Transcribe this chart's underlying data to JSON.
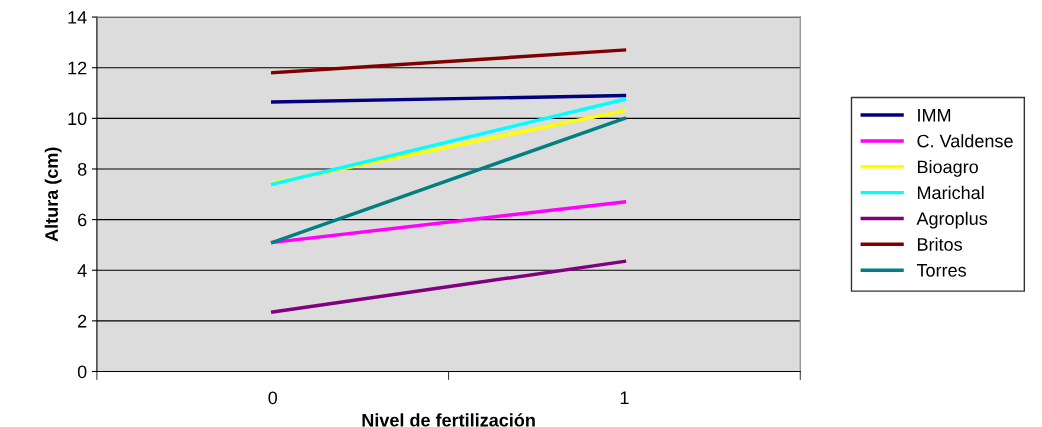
{
  "chart_data": {
    "type": "line",
    "xlabel": "Nivel de fertilización",
    "ylabel": "Altura (cm)",
    "categories": [
      "0",
      "1"
    ],
    "series": [
      {
        "name": "IMM",
        "color": "#000080",
        "values": [
          10.65,
          10.9
        ]
      },
      {
        "name": "C. Valdense",
        "color": "#ff00ff",
        "values": [
          5.1,
          6.7
        ]
      },
      {
        "name": "Bioagro",
        "color": "#ffff00",
        "values": [
          7.45,
          10.3
        ]
      },
      {
        "name": "Marichal",
        "color": "#00ffff",
        "values": [
          7.4,
          10.75
        ]
      },
      {
        "name": "Agroplus",
        "color": "#800080",
        "values": [
          2.35,
          4.35
        ]
      },
      {
        "name": "Britos",
        "color": "#800000",
        "values": [
          11.8,
          12.7
        ]
      },
      {
        "name": "Torres",
        "color": "#008080",
        "values": [
          5.1,
          10.0
        ]
      }
    ],
    "ylim": [
      0,
      14
    ],
    "yticks": [
      0,
      2,
      4,
      6,
      8,
      10,
      12,
      14
    ],
    "grid": "y",
    "legend": "right",
    "marker": "none",
    "line_style": "solid"
  }
}
